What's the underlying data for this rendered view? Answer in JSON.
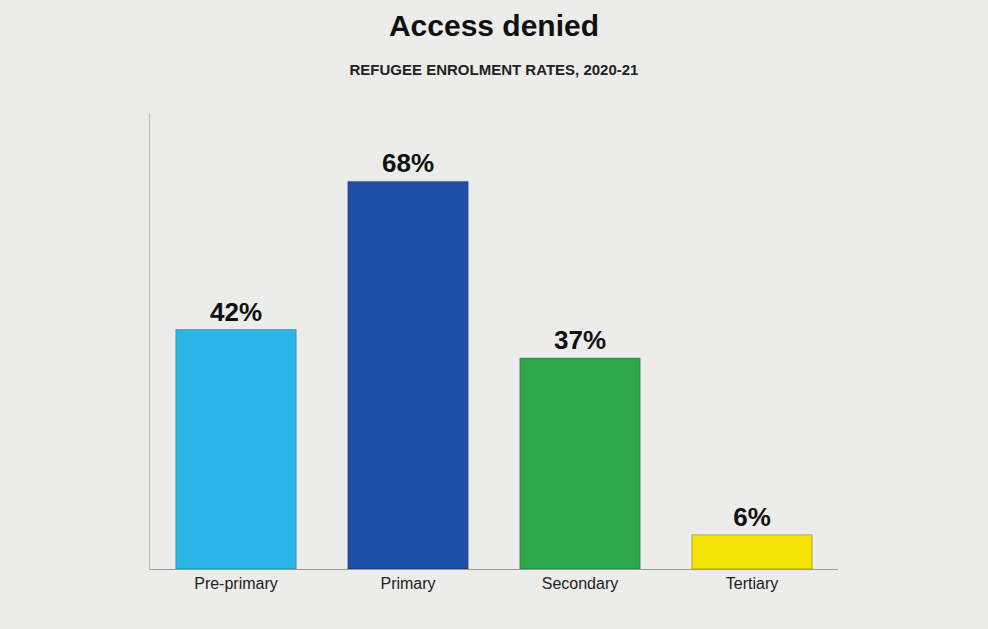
{
  "chart_data": {
    "type": "bar",
    "title": "Access denied",
    "subtitle": "REFUGEE ENROLMENT RATES, 2020-21",
    "categories": [
      "Pre-primary",
      "Primary",
      "Secondary",
      "Tertiary"
    ],
    "values": [
      42,
      68,
      37,
      6
    ],
    "value_labels": [
      "42%",
      "68%",
      "37%",
      "6%"
    ],
    "colors": [
      "#2bb5e6",
      "#1e4fa6",
      "#2ea84a",
      "#f2e205"
    ],
    "ylim": [
      0,
      80
    ],
    "data_labels": true,
    "tick_labels": "x",
    "grid": false
  }
}
